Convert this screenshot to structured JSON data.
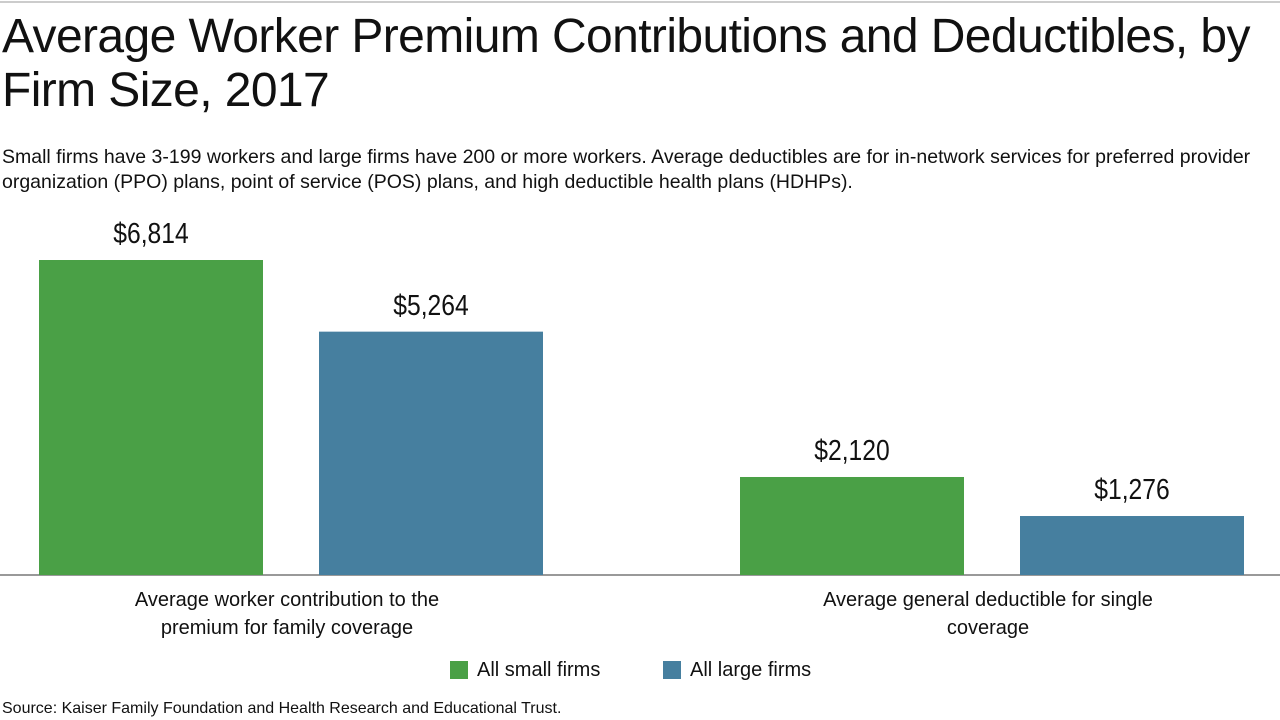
{
  "chart_data": {
    "type": "bar",
    "title": "Average Worker Premium Contributions and Deductibles, by Firm Size, 2017",
    "subtitle": "Small firms have 3-199 workers and large firms have 200 or more workers. Average deductibles are for in-network services for preferred provider organization (PPO) plans, point of service (POS) plans, and high deductible health plans (HDHPs).",
    "categories": [
      "Average worker contribution to the premium for family coverage",
      "Average general deductible for single coverage"
    ],
    "series": [
      {
        "name": "All small firms",
        "color": "#4aa046",
        "values": [
          6814,
          2120
        ],
        "value_labels": [
          "$6,814",
          "$2,120"
        ]
      },
      {
        "name": "All large firms",
        "color": "#467f9f",
        "values": [
          5264,
          1276
        ],
        "value_labels": [
          "$5,264",
          "$1,276"
        ]
      }
    ],
    "source": "Source: Kaiser Family Foundation and Health Research and Educational Trust."
  }
}
